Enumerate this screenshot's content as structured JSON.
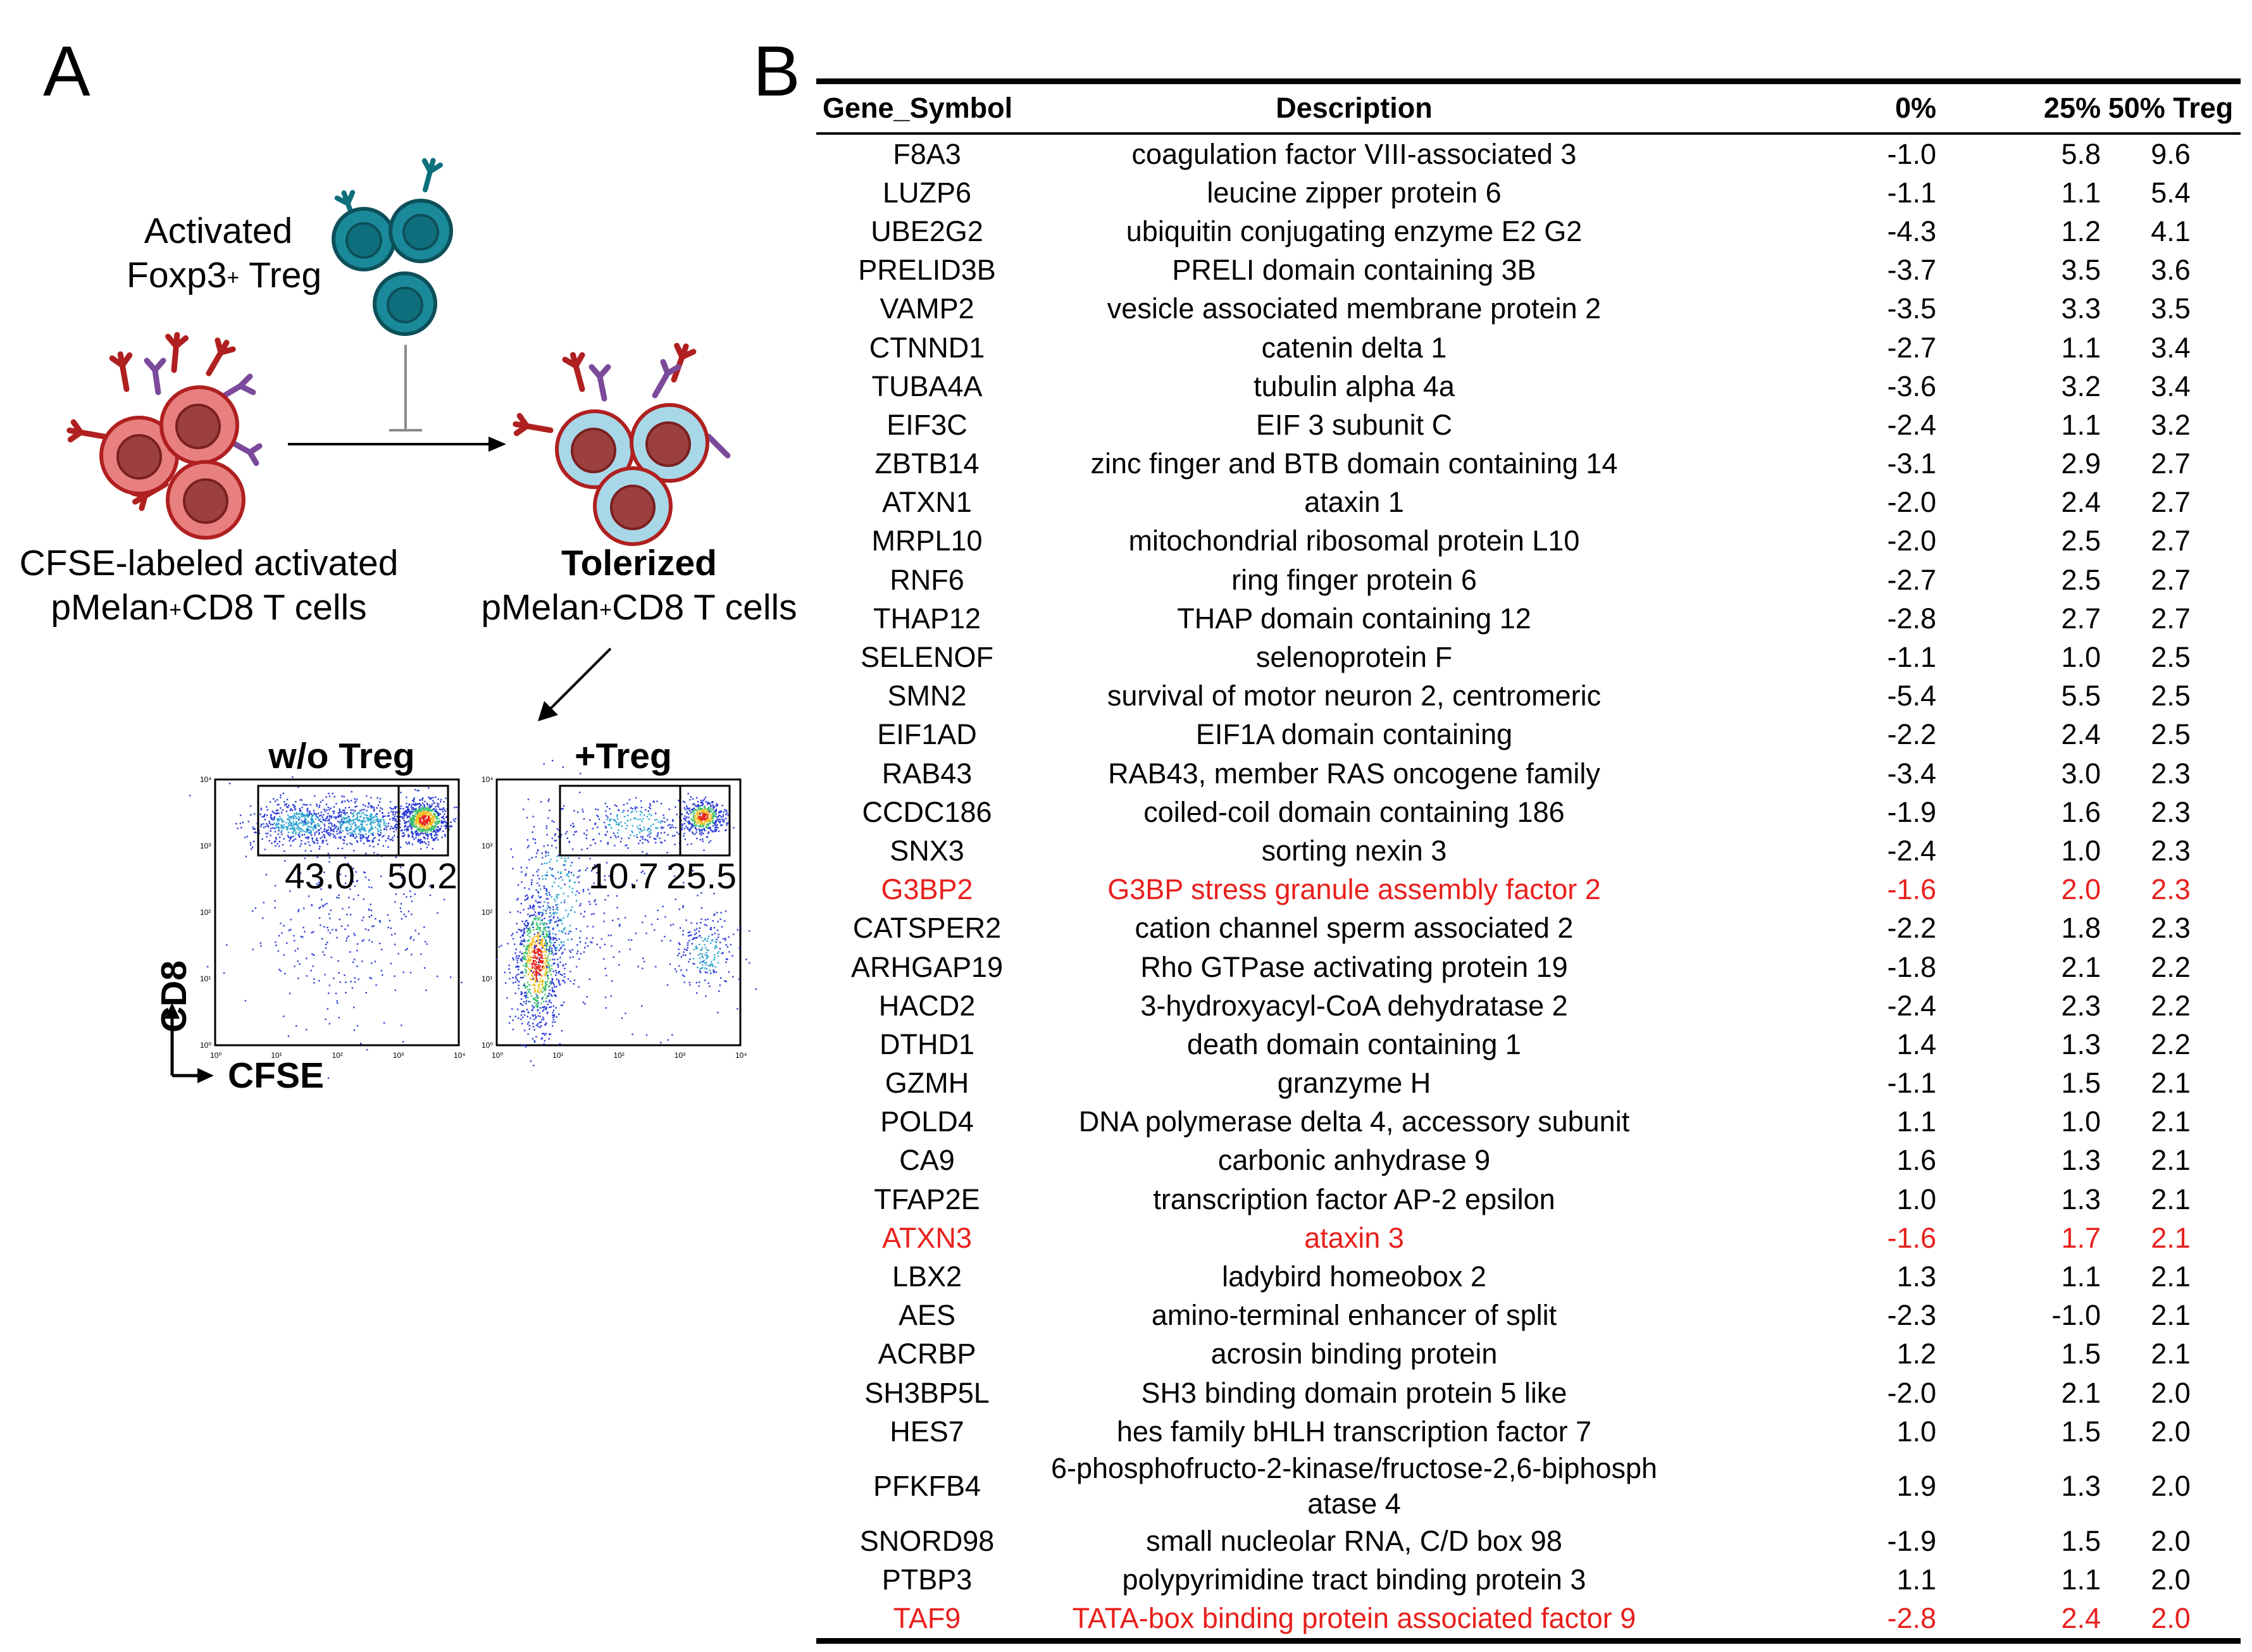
{
  "panel_a": {
    "letter": "A",
    "treg_label_line1": "Activated",
    "treg_label_line2_pre": "Foxp3",
    "treg_label_line2_sup": "+",
    "treg_label_line2_post": " Treg",
    "left_label_line1": "CFSE-labeled activated",
    "left_label_line2_pre": "pMelan",
    "left_label_line2_sup": "+",
    "left_label_line2_post": "CD8 T cells",
    "right_label_line1": "Tolerized",
    "right_label_line2_pre": "pMelan",
    "right_label_line2_sup": "+",
    "right_label_line2_post": "CD8 T cells",
    "plot_left_title": "w/o Treg",
    "plot_right_title": "+Treg",
    "plot_left_gate_left": "43.0",
    "plot_left_gate_right": "50.2",
    "plot_right_gate_left": "10.7",
    "plot_right_gate_right": "25.5",
    "y_axis_label": "CD8",
    "x_axis_label": "CFSE",
    "axis_ticks": [
      "10⁰",
      "10¹",
      "10²",
      "10³",
      "10⁴"
    ],
    "colors": {
      "treg_fill": "#1a8a9a",
      "treg_stroke": "#0d4f5a",
      "cd8_fill": "#e88080",
      "cd8_stroke": "#b02020",
      "cd8_nucleus": "#9c3f3f",
      "tolerized_fill": "#a8d8e8",
      "receptor_red": "#b02020",
      "receptor_purple": "#7b4a9a"
    }
  },
  "panel_b": {
    "letter": "B",
    "headers": [
      "Gene_Symbol",
      "Description",
      "0%",
      "25%",
      "50% Treg"
    ],
    "rows": [
      {
        "gene": "F8A3",
        "desc": "coagulation factor VIII-associated 3",
        "v0": "-1.0",
        "v25": "5.8",
        "v50": "9.6",
        "highlight": false
      },
      {
        "gene": "LUZP6",
        "desc": "leucine zipper protein 6",
        "v0": "-1.1",
        "v25": "1.1",
        "v50": "5.4",
        "highlight": false
      },
      {
        "gene": "UBE2G2",
        "desc": "ubiquitin conjugating enzyme E2 G2",
        "v0": "-4.3",
        "v25": "1.2",
        "v50": "4.1",
        "highlight": false
      },
      {
        "gene": "PRELID3B",
        "desc": "PRELI domain containing 3B",
        "v0": "-3.7",
        "v25": "3.5",
        "v50": "3.6",
        "highlight": false
      },
      {
        "gene": "VAMP2",
        "desc": "vesicle associated membrane protein 2",
        "v0": "-3.5",
        "v25": "3.3",
        "v50": "3.5",
        "highlight": false
      },
      {
        "gene": "CTNND1",
        "desc": "catenin delta 1",
        "v0": "-2.7",
        "v25": "1.1",
        "v50": "3.4",
        "highlight": false
      },
      {
        "gene": "TUBA4A",
        "desc": "tubulin alpha 4a",
        "v0": "-3.6",
        "v25": "3.2",
        "v50": "3.4",
        "highlight": false
      },
      {
        "gene": "EIF3C",
        "desc": "EIF 3 subunit C",
        "v0": "-2.4",
        "v25": "1.1",
        "v50": "3.2",
        "highlight": false
      },
      {
        "gene": "ZBTB14",
        "desc": "zinc finger and BTB domain containing 14",
        "v0": "-3.1",
        "v25": "2.9",
        "v50": "2.7",
        "highlight": false
      },
      {
        "gene": "ATXN1",
        "desc": "ataxin 1",
        "v0": "-2.0",
        "v25": "2.4",
        "v50": "2.7",
        "highlight": false
      },
      {
        "gene": "MRPL10",
        "desc": "mitochondrial ribosomal protein L10",
        "v0": "-2.0",
        "v25": "2.5",
        "v50": "2.7",
        "highlight": false
      },
      {
        "gene": "RNF6",
        "desc": "ring finger protein 6",
        "v0": "-2.7",
        "v25": "2.5",
        "v50": "2.7",
        "highlight": false
      },
      {
        "gene": "THAP12",
        "desc": "THAP domain containing 12",
        "v0": "-2.8",
        "v25": "2.7",
        "v50": "2.7",
        "highlight": false
      },
      {
        "gene": "SELENOF",
        "desc": "selenoprotein F",
        "v0": "-1.1",
        "v25": "1.0",
        "v50": "2.5",
        "highlight": false
      },
      {
        "gene": "SMN2",
        "desc": "survival of motor neuron 2, centromeric",
        "v0": "-5.4",
        "v25": "5.5",
        "v50": "2.5",
        "highlight": false
      },
      {
        "gene": "EIF1AD",
        "desc": "EIF1A domain containing",
        "v0": "-2.2",
        "v25": "2.4",
        "v50": "2.5",
        "highlight": false
      },
      {
        "gene": "RAB43",
        "desc": "RAB43, member RAS oncogene family",
        "v0": "-3.4",
        "v25": "3.0",
        "v50": "2.3",
        "highlight": false
      },
      {
        "gene": "CCDC186",
        "desc": "coiled-coil domain containing 186",
        "v0": "-1.9",
        "v25": "1.6",
        "v50": "2.3",
        "highlight": false
      },
      {
        "gene": "SNX3",
        "desc": "sorting nexin 3",
        "v0": "-2.4",
        "v25": "1.0",
        "v50": "2.3",
        "highlight": false
      },
      {
        "gene": "G3BP2",
        "desc": "G3BP stress granule assembly factor 2",
        "v0": "-1.6",
        "v25": "2.0",
        "v50": "2.3",
        "highlight": true
      },
      {
        "gene": "CATSPER2",
        "desc": "cation channel sperm associated 2",
        "v0": "-2.2",
        "v25": "1.8",
        "v50": "2.3",
        "highlight": false
      },
      {
        "gene": "ARHGAP19",
        "desc": "Rho GTPase activating protein 19",
        "v0": "-1.8",
        "v25": "2.1",
        "v50": "2.2",
        "highlight": false
      },
      {
        "gene": "HACD2",
        "desc": "3-hydroxyacyl-CoA dehydratase 2",
        "v0": "-2.4",
        "v25": "2.3",
        "v50": "2.2",
        "highlight": false
      },
      {
        "gene": "DTHD1",
        "desc": "death domain containing 1",
        "v0": "1.4",
        "v25": "1.3",
        "v50": "2.2",
        "highlight": false
      },
      {
        "gene": "GZMH",
        "desc": "granzyme H",
        "v0": "-1.1",
        "v25": "1.5",
        "v50": "2.1",
        "highlight": false
      },
      {
        "gene": "POLD4",
        "desc": "DNA polymerase delta 4, accessory subunit",
        "v0": "1.1",
        "v25": "1.0",
        "v50": "2.1",
        "highlight": false
      },
      {
        "gene": "CA9",
        "desc": "carbonic anhydrase 9",
        "v0": "1.6",
        "v25": "1.3",
        "v50": "2.1",
        "highlight": false
      },
      {
        "gene": "TFAP2E",
        "desc": "transcription factor AP-2 epsilon",
        "v0": "1.0",
        "v25": "1.3",
        "v50": "2.1",
        "highlight": false
      },
      {
        "gene": "ATXN3",
        "desc": "ataxin 3",
        "v0": "-1.6",
        "v25": "1.7",
        "v50": "2.1",
        "highlight": true
      },
      {
        "gene": "LBX2",
        "desc": "ladybird homeobox 2",
        "v0": "1.3",
        "v25": "1.1",
        "v50": "2.1",
        "highlight": false
      },
      {
        "gene": "AES",
        "desc": "amino-terminal enhancer of split",
        "v0": "-2.3",
        "v25": "-1.0",
        "v50": "2.1",
        "highlight": false
      },
      {
        "gene": "ACRBP",
        "desc": "acrosin binding protein",
        "v0": "1.2",
        "v25": "1.5",
        "v50": "2.1",
        "highlight": false
      },
      {
        "gene": "SH3BP5L",
        "desc": "SH3 binding domain protein 5 like",
        "v0": "-2.0",
        "v25": "2.1",
        "v50": "2.0",
        "highlight": false
      },
      {
        "gene": "HES7",
        "desc": "hes family bHLH transcription factor 7",
        "v0": "1.0",
        "v25": "1.5",
        "v50": "2.0",
        "highlight": false
      },
      {
        "gene": "PFKFB4",
        "desc": "6-phosphofructo-2-kinase/fructose-2,6-biphosph atase 4",
        "v0": "1.9",
        "v25": "1.3",
        "v50": "2.0",
        "highlight": false,
        "tall": true
      },
      {
        "gene": "SNORD98",
        "desc": "small nucleolar RNA, C/D box 98",
        "v0": "-1.9",
        "v25": "1.5",
        "v50": "2.0",
        "highlight": false
      },
      {
        "gene": "PTBP3",
        "desc": "polypyrimidine tract binding protein 3",
        "v0": "1.1",
        "v25": "1.1",
        "v50": "2.0",
        "highlight": false
      },
      {
        "gene": "TAF9",
        "desc": "TATA-box binding protein associated factor 9",
        "v0": "-2.8",
        "v25": "2.4",
        "v50": "2.0",
        "highlight": true
      }
    ]
  }
}
